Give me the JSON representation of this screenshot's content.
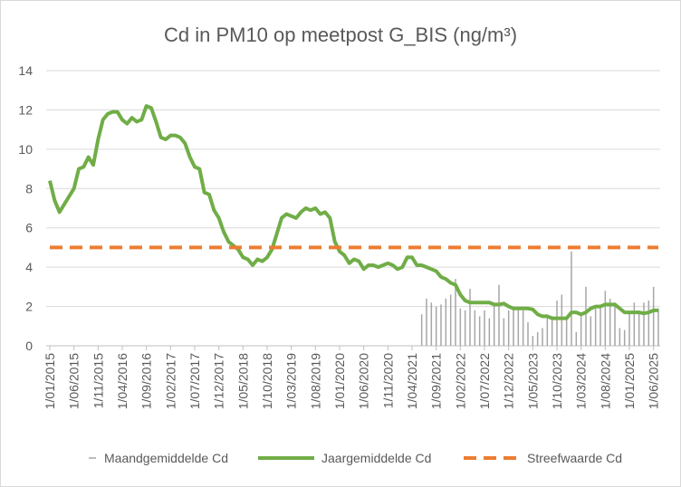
{
  "chart_data": {
    "type": "combo",
    "title": "Cd in PM10 op meetpost G_BIS (ng/m³)",
    "categories": [
      "1/01/2015",
      null,
      null,
      null,
      null,
      "1/06/2015",
      null,
      null,
      null,
      null,
      "1/11/2015",
      null,
      null,
      null,
      null,
      "1/04/2016",
      null,
      null,
      null,
      null,
      "1/09/2016",
      null,
      null,
      null,
      null,
      "1/02/2017",
      null,
      null,
      null,
      null,
      "1/07/2017",
      null,
      null,
      null,
      null,
      "1/12/2017",
      null,
      null,
      null,
      null,
      "1/05/2018",
      null,
      null,
      null,
      null,
      "1/10/2018",
      null,
      null,
      null,
      null,
      "1/03/2019",
      null,
      null,
      null,
      null,
      "1/08/2019",
      null,
      null,
      null,
      null,
      "1/01/2020",
      null,
      null,
      null,
      null,
      "1/06/2020",
      null,
      null,
      null,
      null,
      "1/11/2020",
      null,
      null,
      null,
      null,
      "1/04/2021",
      null,
      null,
      null,
      null,
      "1/09/2021",
      null,
      null,
      null,
      null,
      "1/02/2022",
      null,
      null,
      null,
      null,
      "1/07/2022",
      null,
      null,
      null,
      null,
      "1/12/2022",
      null,
      null,
      null,
      null,
      "1/05/2023",
      null,
      null,
      null,
      null,
      "1/10/2023",
      null,
      null,
      null,
      null,
      "1/03/2024",
      null,
      null,
      null,
      null,
      "1/08/2024",
      null,
      null,
      null,
      null,
      "1/01/2025",
      null,
      null,
      null,
      null,
      "1/06/2025",
      null
    ],
    "series": [
      {
        "name": "Maandgemiddelde Cd",
        "type": "bar",
        "color": "#a6a6a6",
        "values": [
          null,
          null,
          null,
          null,
          null,
          null,
          null,
          null,
          null,
          null,
          null,
          null,
          null,
          null,
          null,
          null,
          null,
          null,
          null,
          null,
          null,
          null,
          null,
          null,
          null,
          null,
          null,
          null,
          null,
          null,
          null,
          null,
          null,
          null,
          null,
          null,
          null,
          null,
          null,
          null,
          null,
          null,
          null,
          null,
          null,
          null,
          null,
          null,
          null,
          null,
          null,
          null,
          null,
          null,
          null,
          null,
          null,
          null,
          null,
          null,
          null,
          null,
          null,
          null,
          null,
          null,
          null,
          null,
          null,
          null,
          null,
          null,
          null,
          null,
          null,
          null,
          null,
          1.6,
          2.4,
          2.2,
          2.0,
          2.1,
          2.4,
          2.6,
          3.4,
          1.9,
          1.8,
          2.9,
          1.8,
          1.5,
          1.8,
          1.4,
          2.1,
          3.1,
          1.4,
          1.8,
          2.0,
          1.9,
          1.8,
          1.2,
          0.5,
          0.7,
          0.9,
          1.6,
          1.5,
          2.3,
          2.6,
          1.5,
          4.8,
          0.7,
          1.6,
          3.0,
          1.5,
          1.9,
          2.1,
          2.8,
          2.4,
          2.2,
          0.9,
          0.8,
          1.7,
          2.2,
          1.8,
          2.2,
          2.3,
          3.0,
          1.9
        ]
      },
      {
        "name": "Jaargemiddelde Cd",
        "type": "line",
        "color": "#70ad47",
        "values": [
          8.4,
          7.4,
          6.8,
          7.2,
          7.6,
          8.0,
          9.0,
          9.1,
          9.6,
          9.2,
          10.5,
          11.5,
          11.8,
          11.9,
          11.9,
          11.5,
          11.3,
          11.6,
          11.4,
          11.5,
          12.2,
          12.1,
          11.4,
          10.6,
          10.5,
          10.7,
          10.7,
          10.6,
          10.3,
          9.6,
          9.1,
          9.0,
          7.8,
          7.7,
          6.9,
          6.5,
          5.8,
          5.3,
          5.1,
          4.9,
          4.5,
          4.4,
          4.1,
          4.4,
          4.3,
          4.5,
          4.9,
          5.7,
          6.5,
          6.7,
          6.6,
          6.5,
          6.8,
          7.0,
          6.9,
          7.0,
          6.7,
          6.8,
          6.5,
          5.3,
          4.8,
          4.6,
          4.2,
          4.4,
          4.3,
          3.9,
          4.1,
          4.1,
          4.0,
          4.1,
          4.2,
          4.1,
          3.9,
          4.0,
          4.5,
          4.5,
          4.1,
          4.1,
          4.0,
          3.9,
          3.8,
          3.5,
          3.4,
          3.2,
          3.1,
          2.6,
          2.3,
          2.2,
          2.2,
          2.2,
          2.2,
          2.2,
          2.1,
          2.1,
          2.15,
          2.0,
          1.9,
          1.9,
          1.9,
          1.9,
          1.85,
          1.6,
          1.5,
          1.5,
          1.4,
          1.4,
          1.4,
          1.4,
          1.7,
          1.7,
          1.6,
          1.7,
          1.9,
          2.0,
          2.0,
          2.1,
          2.1,
          2.1,
          1.9,
          1.7,
          1.7,
          1.7,
          1.7,
          1.65,
          1.7,
          1.8,
          1.8
        ]
      },
      {
        "name": "Streefwaarde Cd",
        "type": "line",
        "dash": true,
        "color": "#ed7d31",
        "values": [
          5,
          5,
          5,
          5,
          5,
          5,
          5,
          5,
          5,
          5,
          5,
          5,
          5,
          5,
          5,
          5,
          5,
          5,
          5,
          5,
          5,
          5,
          5,
          5,
          5,
          5,
          5,
          5,
          5,
          5,
          5,
          5,
          5,
          5,
          5,
          5,
          5,
          5,
          5,
          5,
          5,
          5,
          5,
          5,
          5,
          5,
          5,
          5,
          5,
          5,
          5,
          5,
          5,
          5,
          5,
          5,
          5,
          5,
          5,
          5,
          5,
          5,
          5,
          5,
          5,
          5,
          5,
          5,
          5,
          5,
          5,
          5,
          5,
          5,
          5,
          5,
          5,
          5,
          5,
          5,
          5,
          5,
          5,
          5,
          5,
          5,
          5,
          5,
          5,
          5,
          5,
          5,
          5,
          5,
          5,
          5,
          5,
          5,
          5,
          5,
          5,
          5,
          5,
          5,
          5,
          5,
          5,
          5,
          5,
          5,
          5,
          5,
          5,
          5,
          5,
          5,
          5,
          5,
          5,
          5,
          5,
          5,
          5,
          5,
          5,
          5,
          5
        ]
      }
    ],
    "ylim": [
      0,
      14
    ],
    "yticks": [
      0,
      2,
      4,
      6,
      8,
      10,
      12,
      14
    ],
    "grid": true,
    "legend": "bottom"
  }
}
